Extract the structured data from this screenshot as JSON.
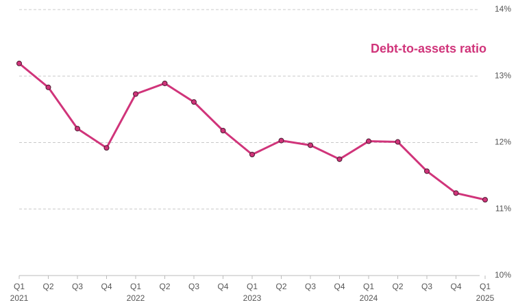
{
  "chart_data": {
    "type": "line",
    "categories": [
      "Q1 2021",
      "Q2",
      "Q3",
      "Q4",
      "Q1 2022",
      "Q2",
      "Q3",
      "Q4",
      "Q1 2023",
      "Q2",
      "Q3",
      "Q4",
      "Q1 2024",
      "Q2",
      "Q3",
      "Q4",
      "Q1 2025"
    ],
    "series": [
      {
        "name": "Debt-to-assets ratio",
        "color": "#d0347a",
        "values": [
          13.19,
          12.83,
          12.21,
          11.92,
          12.73,
          12.89,
          12.61,
          12.18,
          11.82,
          12.03,
          11.96,
          11.75,
          12.02,
          12.01,
          11.57,
          11.24,
          11.14
        ]
      }
    ],
    "ylim": [
      10,
      14
    ],
    "yticks": [
      {
        "value": 10,
        "label": "10%"
      },
      {
        "value": 11,
        "label": "11%"
      },
      {
        "value": 12,
        "label": "12%"
      },
      {
        "value": 13,
        "label": "13%"
      },
      {
        "value": 14,
        "label": "14%"
      }
    ],
    "grid": true
  }
}
